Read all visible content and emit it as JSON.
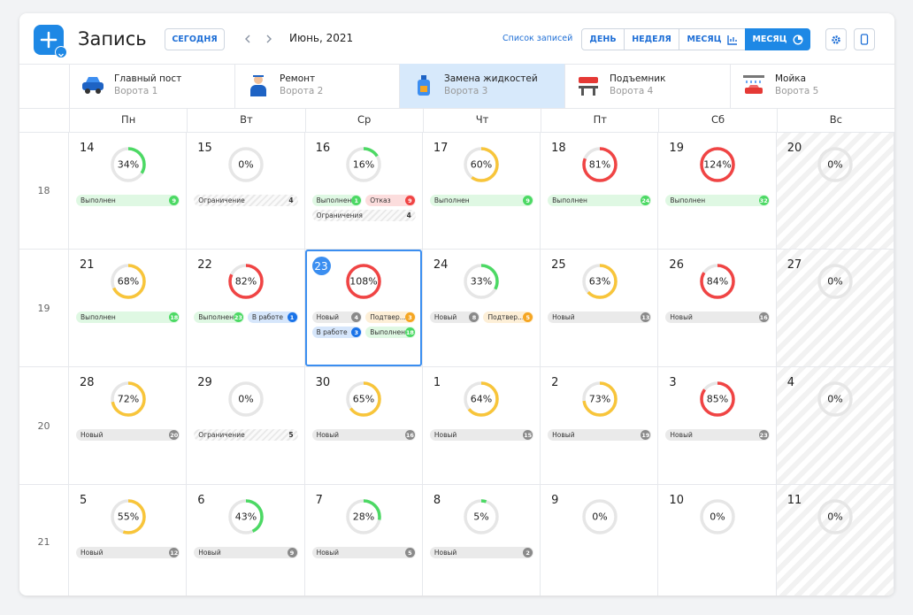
{
  "header": {
    "title": "Запись",
    "today": "СЕГОДНЯ",
    "period": "Июнь, 2021",
    "list_link": "Список записей",
    "views": [
      "ДЕНЬ",
      "НЕДЕЛЯ",
      "МЕСЯЦ",
      "МЕСЯЦ"
    ],
    "active_view": 3
  },
  "gates": [
    {
      "name": "Главный пост",
      "sub": "Ворота 1"
    },
    {
      "name": "Ремонт",
      "sub": "Ворота 2"
    },
    {
      "name": "Замена жидкостей",
      "sub": "Ворота 3"
    },
    {
      "name": "Подъемник",
      "sub": "Ворота 4"
    },
    {
      "name": "Мойка",
      "sub": "Ворота 5"
    }
  ],
  "active_gate": 2,
  "weekdays": [
    "Пн",
    "Вт",
    "Ср",
    "Чт",
    "Пт",
    "Сб",
    "Вс"
  ],
  "weeks": [
    {
      "number": 18,
      "days": [
        {
          "day": 14,
          "load": {
            "value": 34,
            "label": "34%"
          },
          "color": "#4cd964",
          "tags": [
            {
              "label": "Выполнен",
              "count": 9,
              "color": "#4cd964"
            }
          ]
        },
        {
          "day": 15,
          "load": {
            "value": 0,
            "label": "0%"
          },
          "color": "#e4e4e4",
          "tags": [
            {
              "label": "Ограничение",
              "count": 4,
              "striped": true
            }
          ]
        },
        {
          "day": 16,
          "load": {
            "value": 16,
            "label": "16%"
          },
          "color": "#4cd964",
          "tags": [
            {
              "label": "Выполнен",
              "count": 1,
              "color": "#4cd964"
            },
            {
              "label": "Отказ",
              "count": 9,
              "color": "#f04444"
            },
            {
              "label": "Ограничения",
              "count": 4,
              "striped": true
            }
          ]
        },
        {
          "day": 17,
          "load": {
            "value": 60,
            "label": "60%"
          },
          "color": "#f8c53a",
          "tags": [
            {
              "label": "Выполнен",
              "count": 9,
              "color": "#4cd964"
            }
          ]
        },
        {
          "day": 18,
          "load": {
            "value": 81,
            "label": "81%"
          },
          "color": "#f04444",
          "tags": [
            {
              "label": "Выполнен",
              "count": 24,
              "color": "#4cd964"
            }
          ]
        },
        {
          "day": 19,
          "load": {
            "value": 124,
            "label": "124%"
          },
          "color": "#f04444",
          "tags": [
            {
              "label": "Выполнен",
              "count": 32,
              "color": "#4cd964"
            }
          ]
        },
        {
          "day": 20,
          "load": {
            "value": 0,
            "label": "0%"
          },
          "color": "#e4e4e4",
          "shaded": true,
          "tags": []
        }
      ]
    },
    {
      "number": 19,
      "days": [
        {
          "day": 21,
          "load": {
            "value": 68,
            "label": "68%"
          },
          "color": "#f8c53a",
          "tags": [
            {
              "label": "Выполнен",
              "count": 18,
              "color": "#4cd964"
            }
          ]
        },
        {
          "day": 22,
          "load": {
            "value": 82,
            "label": "82%"
          },
          "color": "#f04444",
          "tags": [
            {
              "label": "Выполнен",
              "count": 23,
              "color": "#4cd964"
            },
            {
              "label": "В работе",
              "count": 1,
              "color": "#1a73e8"
            }
          ]
        },
        {
          "day": 23,
          "load": {
            "value": 108,
            "label": "108%"
          },
          "color": "#f04444",
          "selected": true,
          "tags": [
            {
              "label": "Новый",
              "count": 4,
              "color": "#8a8a8a"
            },
            {
              "label": "Подтвер...",
              "count": 3,
              "color": "#f5a623"
            },
            {
              "label": "В работе",
              "count": 3,
              "color": "#1a73e8"
            },
            {
              "label": "Выполнен",
              "count": 18,
              "color": "#4cd964"
            }
          ]
        },
        {
          "day": 24,
          "load": {
            "value": 33,
            "label": "33%"
          },
          "color": "#4cd964",
          "tags": [
            {
              "label": "Новый",
              "count": 8,
              "color": "#8a8a8a"
            },
            {
              "label": "Подтвер...",
              "count": 5,
              "color": "#f5a623"
            }
          ]
        },
        {
          "day": 25,
          "load": {
            "value": 63,
            "label": "63%"
          },
          "color": "#f8c53a",
          "tags": [
            {
              "label": "Новый",
              "count": 13,
              "color": "#8a8a8a"
            }
          ]
        },
        {
          "day": 26,
          "load": {
            "value": 84,
            "label": "84%"
          },
          "color": "#f04444",
          "tags": [
            {
              "label": "Новый",
              "count": 16,
              "color": "#8a8a8a"
            }
          ]
        },
        {
          "day": 27,
          "load": {
            "value": 0,
            "label": "0%"
          },
          "color": "#e4e4e4",
          "shaded": true,
          "tags": []
        }
      ]
    },
    {
      "number": 20,
      "days": [
        {
          "day": 28,
          "load": {
            "value": 72,
            "label": "72%"
          },
          "color": "#f8c53a",
          "tags": [
            {
              "label": "Новый",
              "count": 20,
              "color": "#8a8a8a"
            }
          ]
        },
        {
          "day": 29,
          "load": {
            "value": 0,
            "label": "0%"
          },
          "color": "#e4e4e4",
          "tags": [
            {
              "label": "Ограничение",
              "count": 5,
              "striped": true
            }
          ]
        },
        {
          "day": 30,
          "load": {
            "value": 65,
            "label": "65%"
          },
          "color": "#f8c53a",
          "tags": [
            {
              "label": "Новый",
              "count": 16,
              "color": "#8a8a8a"
            }
          ]
        },
        {
          "day": 1,
          "load": {
            "value": 64,
            "label": "64%"
          },
          "color": "#f8c53a",
          "tags": [
            {
              "label": "Новый",
              "count": 15,
              "color": "#8a8a8a"
            }
          ]
        },
        {
          "day": 2,
          "load": {
            "value": 73,
            "label": "73%"
          },
          "color": "#f8c53a",
          "tags": [
            {
              "label": "Новый",
              "count": 19,
              "color": "#8a8a8a"
            }
          ]
        },
        {
          "day": 3,
          "load": {
            "value": 85,
            "label": "85%"
          },
          "color": "#f04444",
          "tags": [
            {
              "label": "Новый",
              "count": 23,
              "color": "#8a8a8a"
            }
          ]
        },
        {
          "day": 4,
          "load": {
            "value": 0,
            "label": "0%"
          },
          "color": "#e4e4e4",
          "shaded": true,
          "tags": []
        }
      ]
    },
    {
      "number": 21,
      "days": [
        {
          "day": 5,
          "load": {
            "value": 55,
            "label": "55%"
          },
          "color": "#f8c53a",
          "tags": [
            {
              "label": "Новый",
              "count": 12,
              "color": "#8a8a8a"
            }
          ]
        },
        {
          "day": 6,
          "load": {
            "value": 43,
            "label": "43%"
          },
          "color": "#4cd964",
          "tags": [
            {
              "label": "Новый",
              "count": 9,
              "color": "#8a8a8a"
            }
          ]
        },
        {
          "day": 7,
          "load": {
            "value": 28,
            "label": "28%"
          },
          "color": "#4cd964",
          "tags": [
            {
              "label": "Новый",
              "count": 5,
              "color": "#8a8a8a"
            }
          ]
        },
        {
          "day": 8,
          "load": {
            "value": 5,
            "label": "5%"
          },
          "color": "#4cd964",
          "tags": [
            {
              "label": "Новый",
              "count": 2,
              "color": "#8a8a8a"
            }
          ]
        },
        {
          "day": 9,
          "load": {
            "value": 0,
            "label": "0%"
          },
          "color": "#e4e4e4",
          "tags": []
        },
        {
          "day": 10,
          "load": {
            "value": 0,
            "label": "0%"
          },
          "color": "#e4e4e4",
          "tags": []
        },
        {
          "day": 11,
          "load": {
            "value": 0,
            "label": "0%"
          },
          "color": "#e4e4e4",
          "shaded": true,
          "tags": []
        }
      ]
    }
  ]
}
